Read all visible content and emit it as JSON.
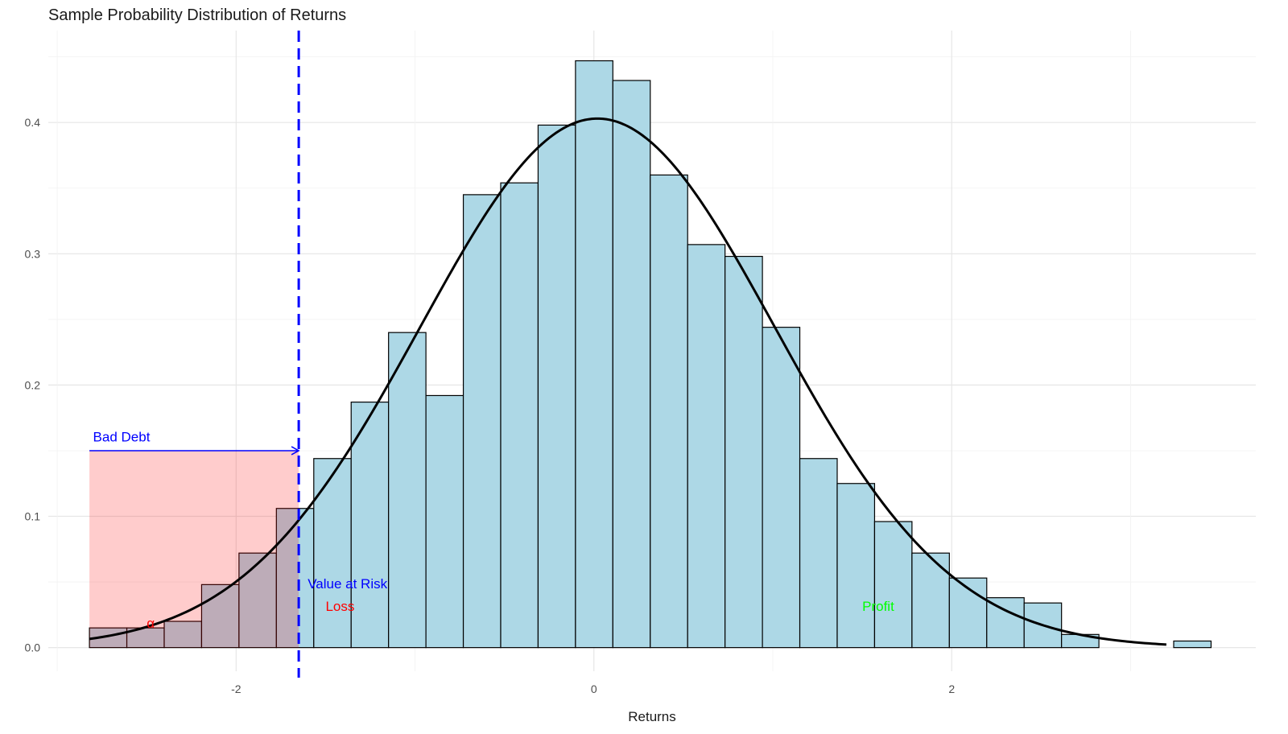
{
  "chart_data": {
    "type": "bar",
    "title": "Sample Probability Distribution of Returns",
    "xlabel": "Returns",
    "ylabel": "",
    "xlim": [
      -3.05,
      3.7
    ],
    "ylim": [
      -0.018,
      0.47
    ],
    "x_ticks": [
      {
        "value": -2,
        "label": "-2"
      },
      {
        "value": 0,
        "label": "0"
      },
      {
        "value": 2,
        "label": "2"
      }
    ],
    "y_ticks": [
      {
        "value": 0.0,
        "label": "0.0"
      },
      {
        "value": 0.1,
        "label": "0.1"
      },
      {
        "value": 0.2,
        "label": "0.2"
      },
      {
        "value": 0.3,
        "label": "0.3"
      },
      {
        "value": 0.4,
        "label": "0.4"
      }
    ],
    "grid": true,
    "histogram": {
      "bin_width": 0.209,
      "fill_color": "#ADD8E6",
      "edge_color": "#000000",
      "bins": [
        {
          "x0": -2.82,
          "density": 0.015
        },
        {
          "x0": -2.611,
          "density": 0.015
        },
        {
          "x0": -2.402,
          "density": 0.02
        },
        {
          "x0": -2.193,
          "density": 0.048
        },
        {
          "x0": -1.984,
          "density": 0.072
        },
        {
          "x0": -1.775,
          "density": 0.106
        },
        {
          "x0": -1.566,
          "density": 0.144
        },
        {
          "x0": -1.357,
          "density": 0.187
        },
        {
          "x0": -1.148,
          "density": 0.24
        },
        {
          "x0": -0.939,
          "density": 0.192
        },
        {
          "x0": -0.73,
          "density": 0.345
        },
        {
          "x0": -0.521,
          "density": 0.354
        },
        {
          "x0": -0.312,
          "density": 0.398
        },
        {
          "x0": -0.103,
          "density": 0.447
        },
        {
          "x0": 0.106,
          "density": 0.432
        },
        {
          "x0": 0.315,
          "density": 0.36
        },
        {
          "x0": 0.524,
          "density": 0.307
        },
        {
          "x0": 0.733,
          "density": 0.298
        },
        {
          "x0": 0.942,
          "density": 0.244
        },
        {
          "x0": 1.151,
          "density": 0.144
        },
        {
          "x0": 1.36,
          "density": 0.125
        },
        {
          "x0": 1.569,
          "density": 0.096
        },
        {
          "x0": 1.778,
          "density": 0.072
        },
        {
          "x0": 1.987,
          "density": 0.053
        },
        {
          "x0": 2.196,
          "density": 0.038
        },
        {
          "x0": 2.405,
          "density": 0.034
        },
        {
          "x0": 2.614,
          "density": 0.01
        },
        {
          "x0": 2.823,
          "density": 0.0
        },
        {
          "x0": 3.032,
          "density": 0.0
        },
        {
          "x0": 3.241,
          "density": 0.005
        }
      ]
    },
    "density_curve": {
      "type": "line",
      "distribution": "normal",
      "mean": 0.02,
      "sd": 0.99,
      "x_range": [
        -2.82,
        3.2
      ],
      "color": "#000000"
    },
    "var_line": {
      "x": -1.65,
      "color": "#0000FF",
      "style": "dashed"
    },
    "loss_region": {
      "x": [
        -2.82,
        -1.65
      ],
      "y": [
        0,
        0.15
      ],
      "color": "#FF0000",
      "opacity": 0.2
    },
    "annotations": [
      {
        "id": "bad-debt",
        "text": "Bad Debt",
        "x": -2.8,
        "y": 0.157,
        "color": "#0000FF"
      },
      {
        "id": "value-at-risk",
        "text": "Value at Risk",
        "x": -1.6,
        "y": 0.045,
        "color": "#0000FF"
      },
      {
        "id": "loss",
        "text": "Loss",
        "x": -1.5,
        "y": 0.028,
        "color": "#FF0000"
      },
      {
        "id": "profit",
        "text": "Profit",
        "x": 1.5,
        "y": 0.028,
        "color": "#00FF00"
      },
      {
        "id": "alpha",
        "text": "α",
        "x": -2.5,
        "y": 0.015,
        "color": "#FF0000"
      }
    ],
    "bad_debt_arrow": {
      "x": [
        -2.82,
        -1.65
      ],
      "y": 0.15,
      "color": "#0000FF"
    }
  }
}
